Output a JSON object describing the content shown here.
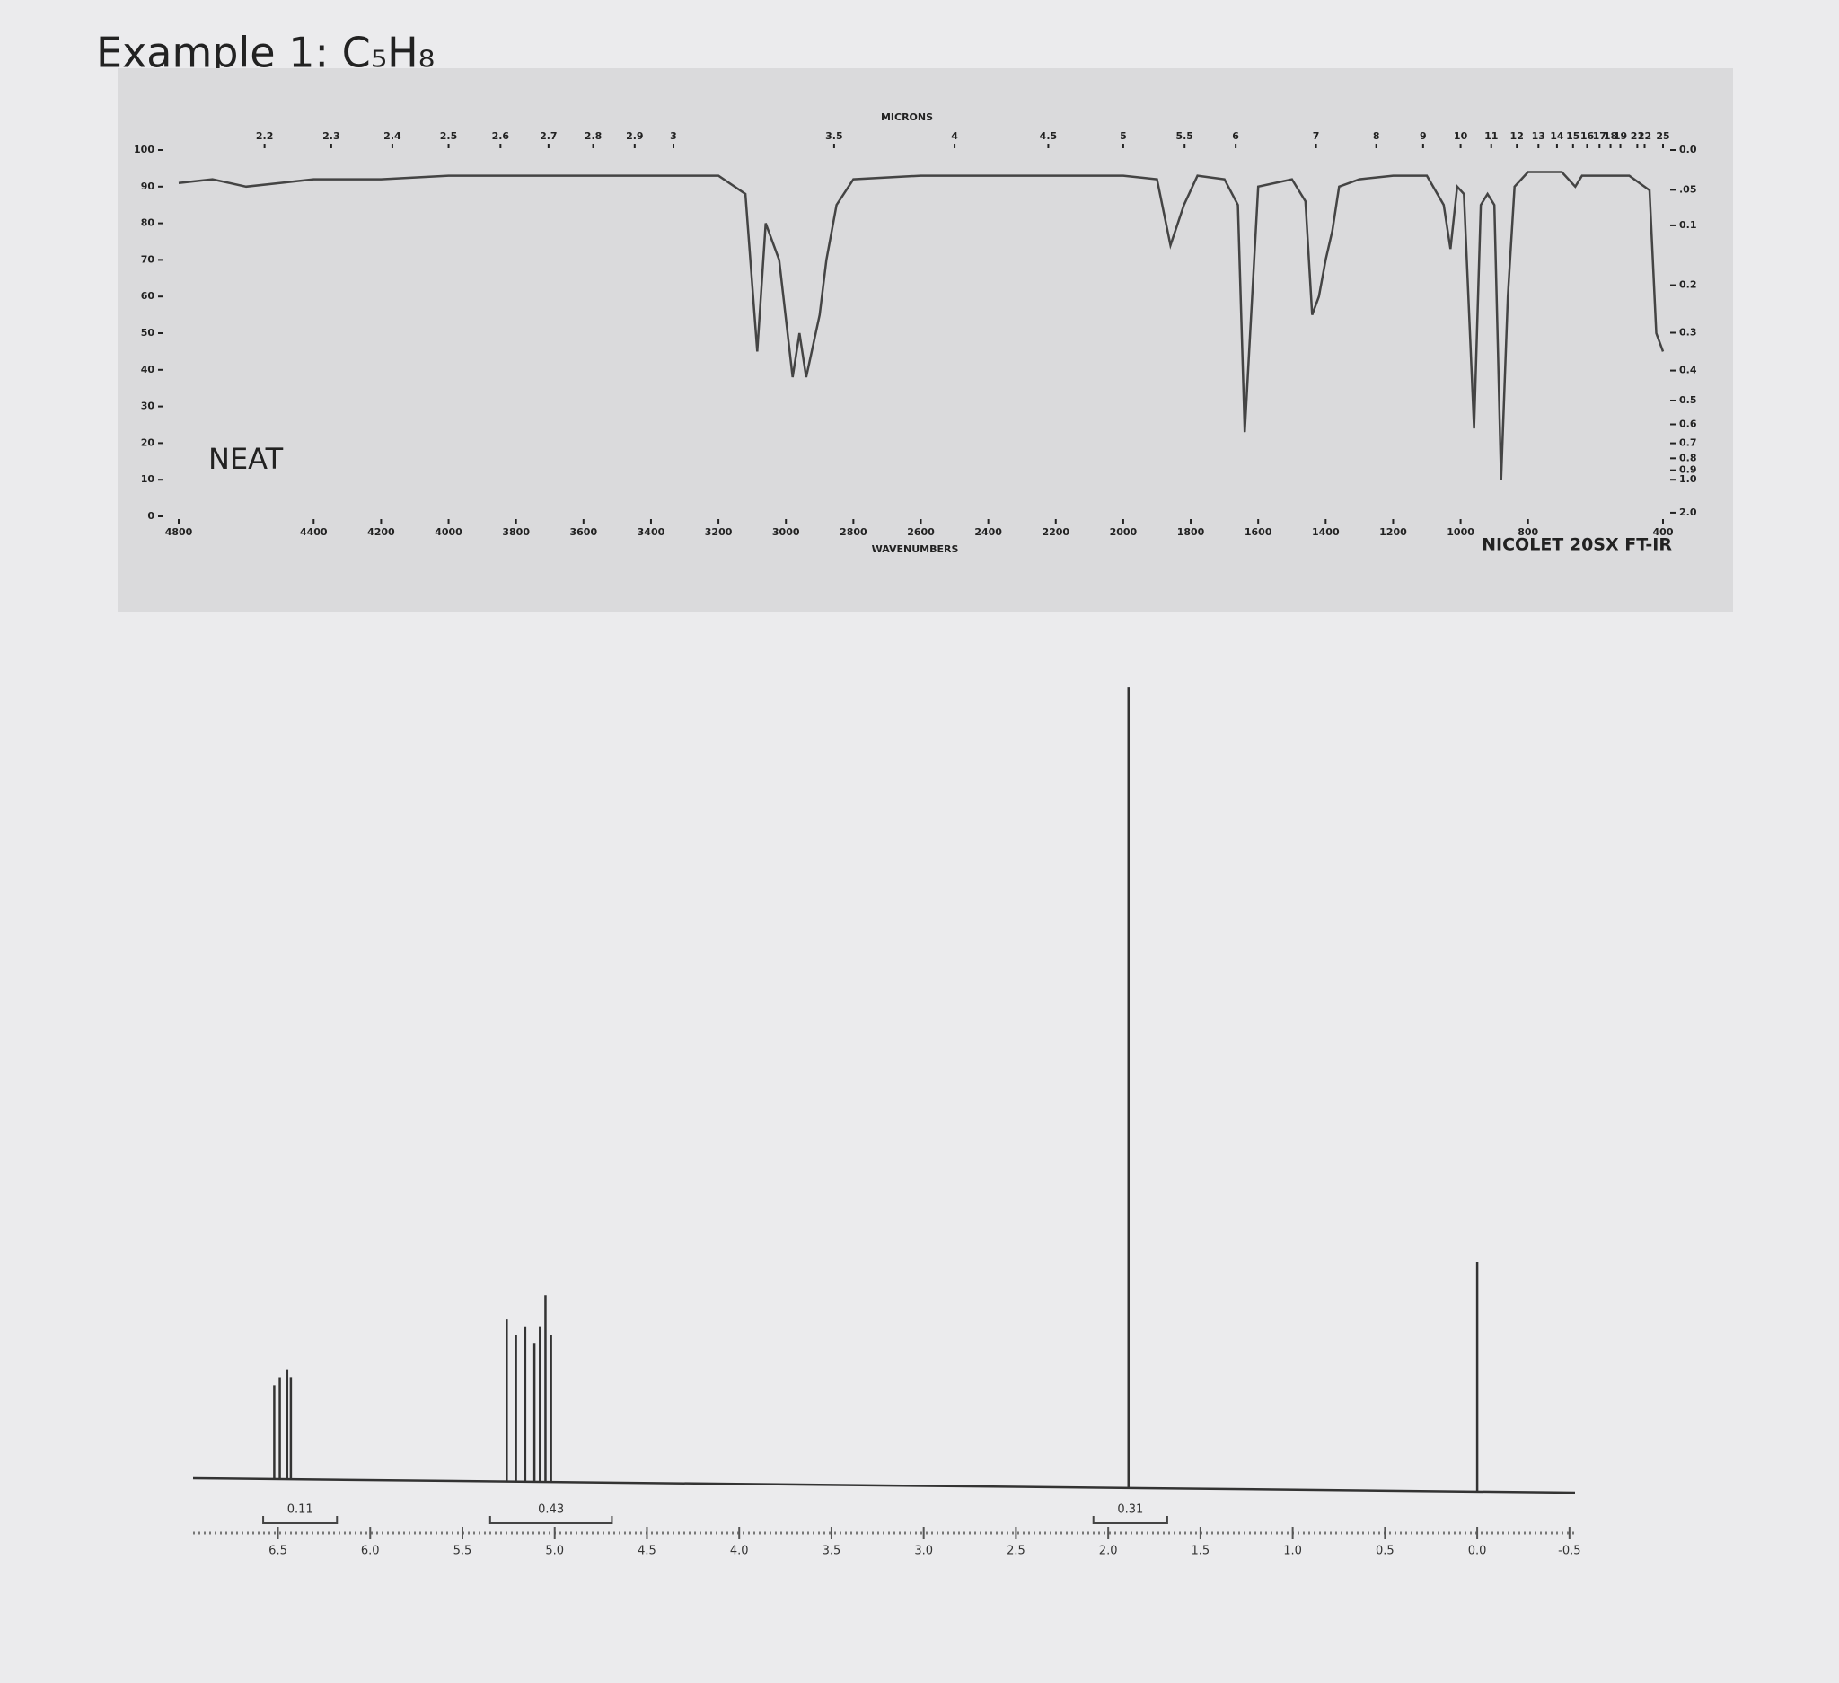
{
  "title": "Example 1: C₅H₈",
  "chart_data": [
    {
      "type": "line",
      "x_label": "WAVENUMBERS",
      "x2_label": "MICRONS",
      "annotations": [
        "NEAT",
        "NICOLET 20SX FT-IR"
      ],
      "color": "#444444",
      "x": [
        4800,
        4700,
        4600,
        4500,
        4400,
        4200,
        4000,
        3600,
        3200,
        3120,
        3085,
        3060,
        3020,
        2980,
        2960,
        2940,
        2900,
        2880,
        2850,
        2800,
        2600,
        2200,
        2000,
        1900,
        1860,
        1820,
        1780,
        1700,
        1660,
        1640,
        1600,
        1500,
        1460,
        1440,
        1420,
        1400,
        1380,
        1360,
        1300,
        1200,
        1100,
        1050,
        1030,
        1010,
        990,
        960,
        940,
        920,
        900,
        880,
        860,
        840,
        800,
        700,
        660,
        640,
        500,
        440,
        420,
        400
      ],
      "values": [
        91,
        92,
        90,
        91,
        92,
        92,
        93,
        93,
        93,
        88,
        45,
        80,
        70,
        38,
        50,
        38,
        55,
        70,
        85,
        92,
        93,
        93,
        93,
        92,
        74,
        85,
        93,
        92,
        85,
        23,
        90,
        92,
        86,
        55,
        60,
        70,
        78,
        90,
        92,
        93,
        93,
        85,
        73,
        90,
        88,
        24,
        85,
        88,
        85,
        10,
        60,
        90,
        94,
        94,
        90,
        93,
        93,
        89,
        50,
        45
      ],
      "xlim": [
        4800,
        400
      ],
      "xticks": [
        4800,
        4400,
        4200,
        4000,
        3800,
        3600,
        3400,
        3200,
        3000,
        2800,
        2600,
        2400,
        2200,
        2000,
        1800,
        1600,
        1400,
        1200,
        1000,
        800,
        400
      ],
      "x2ticks": [
        2.2,
        2.3,
        2.4,
        2.5,
        2.6,
        2.7,
        2.8,
        2.9,
        3,
        3.5,
        4,
        4.5,
        5,
        5.5,
        6,
        7,
        8,
        9,
        10,
        11,
        12,
        13,
        14,
        15,
        16,
        17,
        18,
        19,
        21,
        22,
        25
      ],
      "ylim": [
        0,
        100
      ],
      "yticks": [
        0,
        10,
        20,
        30,
        40,
        50,
        60,
        70,
        80,
        90,
        100
      ],
      "y2ticks": [
        {
          "value": 0,
          "label": "0.0"
        },
        {
          "value": 0.05,
          "label": ".05"
        },
        0.1,
        0.2,
        0.3,
        0.4,
        0.5,
        0.6,
        0.7,
        0.8,
        0.9,
        {
          "value": 1,
          "label": "1.0"
        },
        {
          "value": 2,
          "label": "2.0"
        }
      ]
    },
    {
      "type": "stem",
      "color": "#333333",
      "x": [
        6.52,
        6.49,
        6.45,
        6.43,
        5.26,
        5.21,
        5.16,
        5.11,
        5.08,
        5.05,
        5.02,
        1.89,
        0.0
      ],
      "values": [
        13,
        14,
        15,
        14,
        21,
        19,
        20,
        18,
        20,
        24,
        19,
        100,
        27
      ],
      "xlim": [
        6.96,
        -0.53
      ],
      "ylim": [
        0,
        100
      ],
      "xticks": [
        6.5,
        {
          "value": 6,
          "label": "6.0"
        },
        5.5,
        {
          "value": 5,
          "label": "5.0"
        },
        4.5,
        {
          "value": 4,
          "label": "4.0"
        },
        3.5,
        {
          "value": 3,
          "label": "3.0"
        },
        2.5,
        {
          "value": 2,
          "label": "2.0"
        },
        1.5,
        {
          "value": 1,
          "label": "1.0"
        },
        0.5,
        {
          "value": 0,
          "label": "0.0"
        },
        -0.5
      ],
      "integrals": [
        {
          "from": 6.58,
          "to": 6.18,
          "value": 0.11
        },
        {
          "from": 5.35,
          "to": 4.69,
          "value": 0.43
        },
        {
          "from": 2.08,
          "to": 1.68,
          "value": 0.31
        }
      ]
    }
  ]
}
